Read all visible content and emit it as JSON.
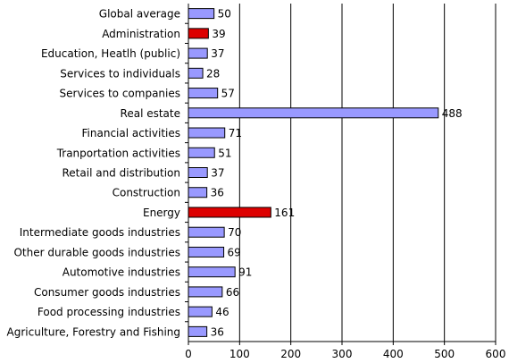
{
  "chart_data": {
    "type": "bar",
    "orientation": "horizontal",
    "categories": [
      "Global average",
      "Administration",
      "Education, Heatlh (public)",
      "Services to individuals",
      "Services to companies",
      "Real estate",
      "Financial activities",
      "Tranportation activities",
      "Retail and distribution",
      "Construction",
      "Energy",
      "Intermediate goods industries",
      "Other durable goods industries",
      "Automotive industries",
      "Consumer goods industries",
      "Food processing industries",
      "Agriculture, Forestry and Fishing"
    ],
    "values": [
      50,
      39,
      37,
      28,
      57,
      488,
      71,
      51,
      37,
      36,
      161,
      70,
      69,
      91,
      66,
      46,
      36
    ],
    "highlighted": [
      "Administration",
      "Energy"
    ],
    "xlim": [
      0,
      600
    ],
    "xticks": [
      0,
      100,
      200,
      300,
      400,
      500,
      600
    ],
    "grid": "vertical",
    "legend": "none",
    "colors": {
      "bar": "#9999ff",
      "highlight": "#dd0000",
      "bar_border": "#000000",
      "grid": "#000000"
    }
  }
}
